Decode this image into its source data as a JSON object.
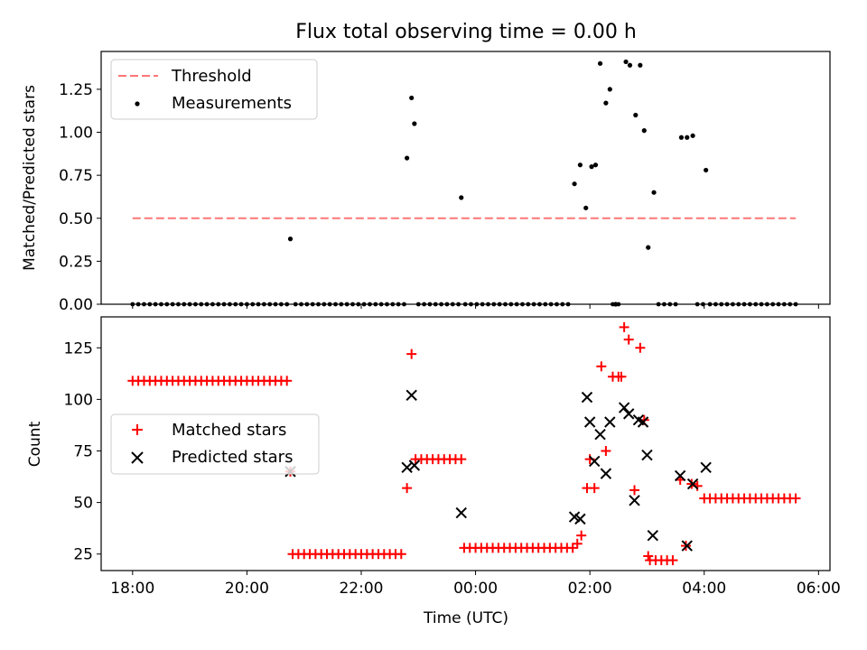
{
  "title": "Flux total observing time = 0.00 h",
  "chart_data": [
    {
      "type": "scatter",
      "ylabel": "Matched/Predicted stars",
      "ylim": [
        0,
        1.47
      ],
      "yticks": [
        0.0,
        0.25,
        0.5,
        0.75,
        1.0,
        1.25
      ],
      "ytick_labels": [
        "0.00",
        "0.25",
        "0.50",
        "0.75",
        "1.00",
        "1.25"
      ],
      "xlim": [
        17.45,
        30.2
      ],
      "xticks": [
        18,
        20,
        22,
        24,
        26,
        28,
        30
      ],
      "grid": false,
      "legend": "top-left",
      "threshold": {
        "name": "Threshold",
        "value": 0.5,
        "x": [
          18.0,
          29.6
        ],
        "color": "#ff7777"
      },
      "series": [
        {
          "name": "Measurements",
          "color": "#000000",
          "x": [
            20.76,
            22.8,
            22.88,
            22.93,
            23.75,
            25.73,
            25.83,
            25.93,
            26.03,
            26.1,
            26.18,
            26.28,
            26.35,
            26.45,
            26.63,
            26.7,
            26.8,
            26.88,
            26.95,
            27.02,
            27.12,
            27.6,
            27.7,
            27.8,
            28.03
          ],
          "y": [
            0.38,
            0.85,
            1.2,
            1.05,
            0.62,
            0.7,
            0.81,
            0.56,
            0.8,
            0.81,
            1.4,
            1.17,
            1.25,
            0.0,
            1.41,
            1.39,
            1.1,
            1.39,
            1.01,
            0.33,
            0.65,
            0.97,
            0.97,
            0.98,
            0.78
          ],
          "zero_runs": [
            [
              18.0,
              20.7
            ],
            [
              20.85,
              22.75
            ],
            [
              23.0,
              23.72
            ],
            [
              23.82,
              25.65
            ],
            [
              26.4,
              26.5
            ],
            [
              27.2,
              27.5
            ],
            [
              27.88,
              27.98
            ],
            [
              28.1,
              29.6
            ]
          ],
          "zero_step": 0.1
        }
      ]
    },
    {
      "type": "scatter",
      "xlabel": "Time (UTC)",
      "ylabel": "Count",
      "ylim": [
        17,
        140
      ],
      "yticks": [
        25,
        50,
        75,
        100,
        125
      ],
      "ytick_labels": [
        "25",
        "50",
        "75",
        "100",
        "125"
      ],
      "xlim": [
        17.45,
        30.2
      ],
      "xticks": [
        18,
        20,
        22,
        24,
        26,
        28,
        30
      ],
      "xtick_labels": [
        "18:00",
        "20:00",
        "22:00",
        "00:00",
        "02:00",
        "04:00",
        "06:00"
      ],
      "grid": false,
      "legend": "center-left",
      "series": [
        {
          "name": "Matched stars",
          "marker": "+",
          "color": "#ff0000",
          "runs": [
            {
              "x0": 18.0,
              "x1": 20.7,
              "y": 109
            },
            {
              "x0": 20.8,
              "x1": 22.75,
              "y": 25
            },
            {
              "x0": 22.95,
              "x1": 23.75,
              "y": 71
            },
            {
              "x0": 23.8,
              "x1": 25.65,
              "y": 28
            },
            {
              "x0": 27.05,
              "x1": 27.5,
              "y": 22
            },
            {
              "x0": 28.0,
              "x1": 29.6,
              "y": 52
            }
          ],
          "run_step": 0.1,
          "x": [
            20.76,
            22.8,
            22.88,
            25.78,
            25.85,
            25.95,
            26.0,
            26.08,
            26.2,
            26.28,
            26.4,
            26.5,
            26.55,
            26.6,
            26.68,
            26.78,
            26.88,
            26.95,
            27.02,
            27.58,
            27.68,
            27.78,
            27.88,
            25.7
          ],
          "y": [
            65,
            57,
            122,
            30,
            34,
            57,
            71,
            57,
            116,
            75,
            111,
            111,
            111,
            135,
            129,
            56,
            125,
            90,
            24,
            61,
            29,
            59,
            58,
            28
          ]
        },
        {
          "name": "Predicted stars",
          "marker": "x",
          "color": "#000000",
          "x": [
            20.76,
            22.8,
            22.88,
            22.93,
            23.75,
            25.73,
            25.83,
            25.95,
            26.0,
            26.08,
            26.18,
            26.28,
            26.35,
            26.6,
            26.68,
            26.78,
            26.85,
            26.93,
            27.0,
            27.1,
            27.58,
            27.7,
            27.8,
            28.03
          ],
          "y": [
            65,
            67,
            102,
            68,
            45,
            43,
            42,
            101,
            89,
            70,
            83,
            64,
            89,
            96,
            93,
            51,
            90,
            89,
            73,
            34,
            63,
            29,
            59,
            67
          ]
        }
      ]
    }
  ]
}
